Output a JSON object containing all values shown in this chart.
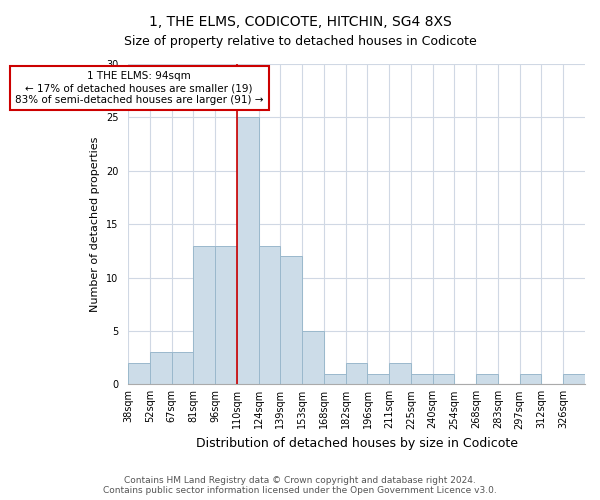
{
  "title": "1, THE ELMS, CODICOTE, HITCHIN, SG4 8XS",
  "subtitle": "Size of property relative to detached houses in Codicote",
  "xlabel": "Distribution of detached houses by size in Codicote",
  "ylabel": "Number of detached properties",
  "categories": [
    "38sqm",
    "52sqm",
    "67sqm",
    "81sqm",
    "96sqm",
    "110sqm",
    "124sqm",
    "139sqm",
    "153sqm",
    "168sqm",
    "182sqm",
    "196sqm",
    "211sqm",
    "225sqm",
    "240sqm",
    "254sqm",
    "268sqm",
    "283sqm",
    "297sqm",
    "312sqm",
    "326sqm"
  ],
  "values": [
    2,
    3,
    3,
    13,
    13,
    25,
    13,
    12,
    5,
    1,
    2,
    1,
    2,
    1,
    1,
    0,
    1,
    0,
    1,
    0,
    1
  ],
  "bar_color": "#ccdce8",
  "bar_edge_color": "#9ab8cc",
  "property_bin_index": 4,
  "property_label": "1 THE ELMS: 94sqm",
  "annotation_line1": "← 17% of detached houses are smaller (19)",
  "annotation_line2": "83% of semi-detached houses are larger (91) →",
  "annotation_box_color": "#ffffff",
  "annotation_box_edge_color": "#cc0000",
  "property_line_color": "#cc0000",
  "ylim": [
    0,
    30
  ],
  "yticks": [
    0,
    5,
    10,
    15,
    20,
    25,
    30
  ],
  "footnote1": "Contains HM Land Registry data © Crown copyright and database right 2024.",
  "footnote2": "Contains public sector information licensed under the Open Government Licence v3.0.",
  "grid_color": "#d0d8e4",
  "title_fontsize": 10,
  "subtitle_fontsize": 9,
  "ylabel_fontsize": 8,
  "xlabel_fontsize": 9,
  "tick_fontsize": 7,
  "annotation_fontsize": 7.5,
  "footnote_fontsize": 6.5
}
